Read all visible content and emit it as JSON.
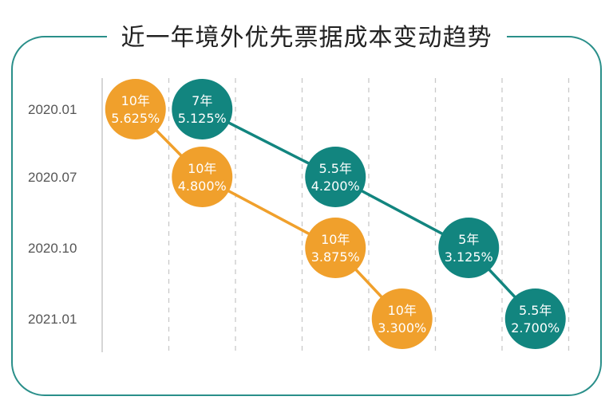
{
  "title": "近一年境外优先票据成本变动趋势",
  "colors": {
    "orange": "#f0a02c",
    "teal": "#12857f",
    "frame": "#2a8f8a",
    "grid": "#c9c9c9"
  },
  "chart_data": {
    "type": "scatter",
    "title": "近一年境外优先票据成本变动趋势",
    "yticks": [
      "2020.01",
      "2020.07",
      "2020.10",
      "2021.01"
    ],
    "xlim": [
      0,
      7
    ],
    "series": [
      {
        "color": "#f0a02c",
        "points": [
          {
            "x": 0.5,
            "y": "2020.01",
            "term": "10年",
            "rate": "5.625%"
          },
          {
            "x": 1.5,
            "y": "2020.07",
            "term": "10年",
            "rate": "4.800%"
          },
          {
            "x": 3.5,
            "y": "2020.10",
            "term": "10年",
            "rate": "3.875%"
          },
          {
            "x": 4.5,
            "y": "2021.01",
            "term": "10年",
            "rate": "3.300%"
          }
        ]
      },
      {
        "color": "#12857f",
        "points": [
          {
            "x": 1.5,
            "y": "2020.01",
            "term": "7年",
            "rate": "5.125%"
          },
          {
            "x": 3.5,
            "y": "2020.07",
            "term": "5.5年",
            "rate": "4.200%"
          },
          {
            "x": 5.5,
            "y": "2020.10",
            "term": "5年",
            "rate": "3.125%"
          },
          {
            "x": 6.5,
            "y": "2021.01",
            "term": "5.5年",
            "rate": "2.700%"
          }
        ]
      }
    ]
  }
}
